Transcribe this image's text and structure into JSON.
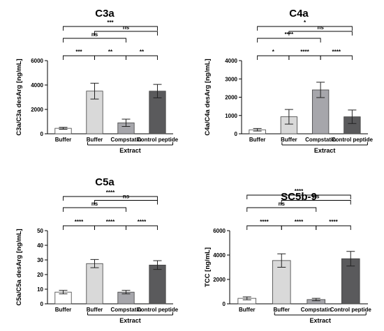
{
  "colors": {
    "bar_fills": [
      "#ffffff",
      "#d9d9d9",
      "#a6a6ab",
      "#5a5a5c"
    ],
    "bar_stroke": "#404040",
    "axis": "#000000"
  },
  "chart_data": [
    {
      "type": "bar",
      "title": "C3a",
      "ylabel": "C3a/C3a desArg [ng/mL]",
      "ylim": [
        0,
        6000
      ],
      "yticks": [
        "0",
        "2000",
        "4000",
        "6000"
      ],
      "categories": [
        "Buffer",
        "Buffer",
        "Compstatin",
        "Control peptide"
      ],
      "group_label": "Extract",
      "values": [
        450,
        3500,
        900,
        3500
      ],
      "errors": [
        80,
        650,
        300,
        550
      ],
      "comparisons": [
        {
          "from": 1,
          "to": 2,
          "label": "***"
        },
        {
          "from": 2,
          "to": 3,
          "label": "**"
        },
        {
          "from": 3,
          "to": 4,
          "label": "**"
        },
        {
          "from": 1,
          "to": 3,
          "label": "ns"
        },
        {
          "from": 2,
          "to": 4,
          "label": "ns"
        },
        {
          "from": 1,
          "to": 4,
          "label": "***"
        }
      ]
    },
    {
      "type": "bar",
      "title": "C4a",
      "ylabel": "C4a/C4a desArg [ng/mL]",
      "ylim": [
        0,
        4000
      ],
      "yticks": [
        "0",
        "1000",
        "2000",
        "3000",
        "4000"
      ],
      "categories": [
        "Buffer",
        "Buffer",
        "Compstatin",
        "Control peptide"
      ],
      "group_label": "Extract",
      "values": [
        220,
        930,
        2400,
        930
      ],
      "errors": [
        70,
        400,
        420,
        370
      ],
      "comparisons": [
        {
          "from": 1,
          "to": 2,
          "label": "*"
        },
        {
          "from": 2,
          "to": 3,
          "label": "****"
        },
        {
          "from": 3,
          "to": 4,
          "label": "****"
        },
        {
          "from": 1,
          "to": 3,
          "label": "****"
        },
        {
          "from": 2,
          "to": 4,
          "label": "ns"
        },
        {
          "from": 1,
          "to": 4,
          "label": "*"
        }
      ]
    },
    {
      "type": "bar",
      "title": "C5a",
      "ylabel": "C5a/C5a desArg [ng/mL]",
      "ylim": [
        0,
        50
      ],
      "yticks": [
        "0",
        "10",
        "20",
        "30",
        "40",
        "50"
      ],
      "categories": [
        "Buffer",
        "Buffer",
        "Compstatin",
        "Control peptide"
      ],
      "group_label": "Extract",
      "values": [
        8,
        27.5,
        8,
        26.5
      ],
      "errors": [
        1.2,
        2.8,
        1.2,
        3
      ],
      "comparisons": [
        {
          "from": 1,
          "to": 2,
          "label": "****"
        },
        {
          "from": 2,
          "to": 3,
          "label": "****"
        },
        {
          "from": 3,
          "to": 4,
          "label": "****"
        },
        {
          "from": 1,
          "to": 3,
          "label": "ns"
        },
        {
          "from": 2,
          "to": 4,
          "label": "ns"
        },
        {
          "from": 1,
          "to": 4,
          "label": "****"
        }
      ]
    },
    {
      "type": "bar",
      "title": "SC5b-9",
      "ylabel": "TCC [ng/mL]",
      "ylim": [
        0,
        6000
      ],
      "yticks": [
        "0",
        "2000",
        "4000",
        "6000"
      ],
      "categories": [
        "Buffer",
        "Buffer",
        "Compstatin",
        "Control peptide"
      ],
      "group_label": "Extract",
      "values": [
        450,
        3550,
        350,
        3700
      ],
      "errors": [
        120,
        550,
        100,
        600
      ],
      "comparisons": [
        {
          "from": 1,
          "to": 2,
          "label": "****"
        },
        {
          "from": 2,
          "to": 3,
          "label": "****"
        },
        {
          "from": 3,
          "to": 4,
          "label": "****"
        },
        {
          "from": 1,
          "to": 3,
          "label": "ns"
        },
        {
          "from": 2,
          "to": 4,
          "label": "ns"
        },
        {
          "from": 1,
          "to": 4,
          "label": "****"
        }
      ]
    }
  ]
}
